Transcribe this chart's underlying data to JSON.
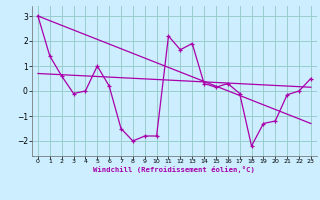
{
  "xlabel": "Windchill (Refroidissement éolien,°C)",
  "bg_color": "#cceeff",
  "line_color": "#aa00aa",
  "grid_color": "#99cccc",
  "x_hours": [
    0,
    1,
    2,
    3,
    4,
    5,
    6,
    7,
    8,
    9,
    10,
    11,
    12,
    13,
    14,
    15,
    16,
    17,
    18,
    19,
    20,
    21,
    22,
    23
  ],
  "windchill": [
    3.0,
    1.4,
    0.6,
    -0.1,
    0.0,
    1.0,
    0.2,
    -1.5,
    -2.0,
    -1.8,
    -1.8,
    2.2,
    1.65,
    1.9,
    0.3,
    0.15,
    0.3,
    -0.1,
    -2.2,
    -1.3,
    -1.2,
    -0.15,
    0.0,
    0.5
  ],
  "trend_line1": [
    [
      0,
      3.0
    ],
    [
      23,
      -1.3
    ]
  ],
  "trend_line2": [
    [
      0,
      0.7
    ],
    [
      23,
      0.15
    ]
  ],
  "ylim": [
    -2.6,
    3.4
  ],
  "xlim": [
    -0.5,
    23.5
  ],
  "yticks": [
    -2,
    -1,
    0,
    1,
    2,
    3
  ],
  "xticks": [
    0,
    1,
    2,
    3,
    4,
    5,
    6,
    7,
    8,
    9,
    10,
    11,
    12,
    13,
    14,
    15,
    16,
    17,
    18,
    19,
    20,
    21,
    22,
    23
  ]
}
